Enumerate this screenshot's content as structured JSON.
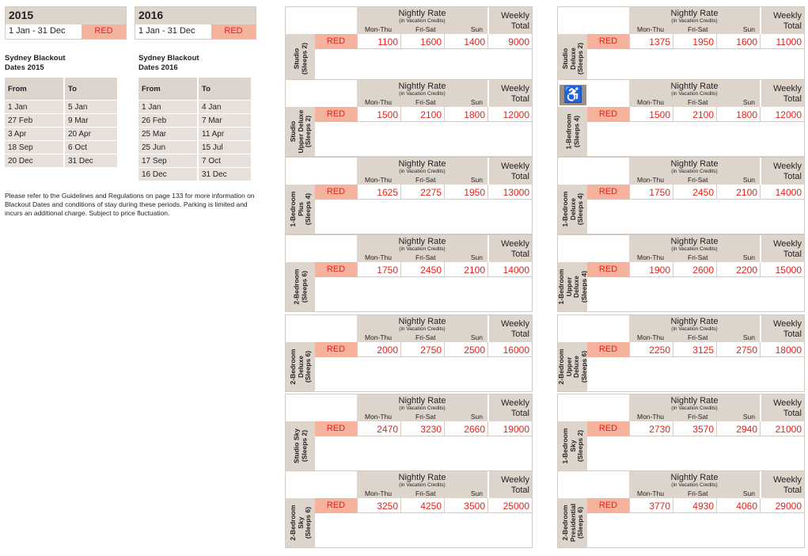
{
  "years": [
    {
      "year": "2015",
      "range": "1 Jan - 31 Dec",
      "season": "RED"
    },
    {
      "year": "2016",
      "range": "1 Jan - 31 Dec",
      "season": "RED"
    }
  ],
  "blackout": [
    {
      "title": "Sydney Blackout\nDates 2015",
      "from_label": "From",
      "to_label": "To",
      "rows": [
        [
          "1 Jan",
          "5 Jan"
        ],
        [
          "27 Feb",
          "9 Mar"
        ],
        [
          "3 Apr",
          "20 Apr"
        ],
        [
          "18 Sep",
          "6 Oct"
        ],
        [
          "20 Dec",
          "31 Dec"
        ]
      ]
    },
    {
      "title": "Sydney Blackout\nDates 2016",
      "from_label": "From",
      "to_label": "To",
      "rows": [
        [
          "1 Jan",
          "4 Jan"
        ],
        [
          "26 Feb",
          "7 Mar"
        ],
        [
          "25 Mar",
          "11 Apr"
        ],
        [
          "25 Jun",
          "15 Jul"
        ],
        [
          "17 Sep",
          "7 Oct"
        ],
        [
          "16 Dec",
          "31 Dec"
        ]
      ]
    }
  ],
  "note": "Please refer to the Guidelines and Regulations on page 133 for more information on Blackout Dates and conditions of stay during these periods. Parking is limited and incurs an additional charge. Subject to price fluctuation.",
  "headers": {
    "nightly": "Nightly Rate",
    "nightly_sub": "(in Vacation Credits)",
    "mon_thu": "Mon-Thu",
    "fri_sat": "Fri-Sat",
    "sun": "Sun",
    "weekly": "Weekly\nTotal"
  },
  "rooms_left": [
    {
      "name": "Studio\n(Sleeps 2)",
      "season": "RED",
      "mon_thu": "1100",
      "fri_sat": "1600",
      "sun": "1400",
      "weekly": "9000"
    },
    {
      "name": "Studio\nUpper Deluxe\n(Sleeps 2)",
      "season": "RED",
      "mon_thu": "1500",
      "fri_sat": "2100",
      "sun": "1800",
      "weekly": "12000"
    },
    {
      "name": "1-Bedroom\nPlus\n(Sleeps 4)",
      "season": "RED",
      "mon_thu": "1625",
      "fri_sat": "2275",
      "sun": "1950",
      "weekly": "13000"
    },
    {
      "name": "2-Bedroom\n(Sleeps 6)",
      "season": "RED",
      "mon_thu": "1750",
      "fri_sat": "2450",
      "sun": "2100",
      "weekly": "14000"
    },
    {
      "name": "2-Bedroom\nDeluxe\n(Sleeps 6)",
      "season": "RED",
      "mon_thu": "2000",
      "fri_sat": "2750",
      "sun": "2500",
      "weekly": "16000"
    },
    {
      "name": "Studio Sky\n(Sleeps 2)",
      "season": "RED",
      "mon_thu": "2470",
      "fri_sat": "3230",
      "sun": "2660",
      "weekly": "19000"
    },
    {
      "name": "2-Bedroom\nSky\n(Sleeps 6)",
      "season": "RED",
      "mon_thu": "3250",
      "fri_sat": "4250",
      "sun": "3500",
      "weekly": "25000"
    }
  ],
  "rooms_right": [
    {
      "name": "Studio\nDeluxe\n(Sleeps 2)",
      "season": "RED",
      "mon_thu": "1375",
      "fri_sat": "1950",
      "sun": "1600",
      "weekly": "11000",
      "accessible": false
    },
    {
      "name": "1-Bedroom\n(Sleeps 4)",
      "season": "RED",
      "mon_thu": "1500",
      "fri_sat": "2100",
      "sun": "1800",
      "weekly": "12000",
      "accessible": true
    },
    {
      "name": "1-Bedroom\nDeluxe\n(Sleeps 4)",
      "season": "RED",
      "mon_thu": "1750",
      "fri_sat": "2450",
      "sun": "2100",
      "weekly": "14000",
      "accessible": false
    },
    {
      "name": "1-Bedroom\nUpper\nDeluxe\n(Sleeps 4)",
      "season": "RED",
      "mon_thu": "1900",
      "fri_sat": "2600",
      "sun": "2200",
      "weekly": "15000",
      "accessible": false
    },
    {
      "name": "2-Bedroom\nUpper\nDeluxe\n(Sleeps 6)",
      "season": "RED",
      "mon_thu": "2250",
      "fri_sat": "3125",
      "sun": "2750",
      "weekly": "18000",
      "accessible": false
    },
    {
      "name": "1-Bedroom\nSky\n(Sleeps 2)",
      "season": "RED",
      "mon_thu": "2730",
      "fri_sat": "3570",
      "sun": "2940",
      "weekly": "21000",
      "accessible": false
    },
    {
      "name": "2-Bedroom\nPresidential\n(Sleeps 6)",
      "season": "RED",
      "mon_thu": "3770",
      "fri_sat": "4930",
      "sun": "4060",
      "weekly": "29000",
      "accessible": false
    }
  ]
}
